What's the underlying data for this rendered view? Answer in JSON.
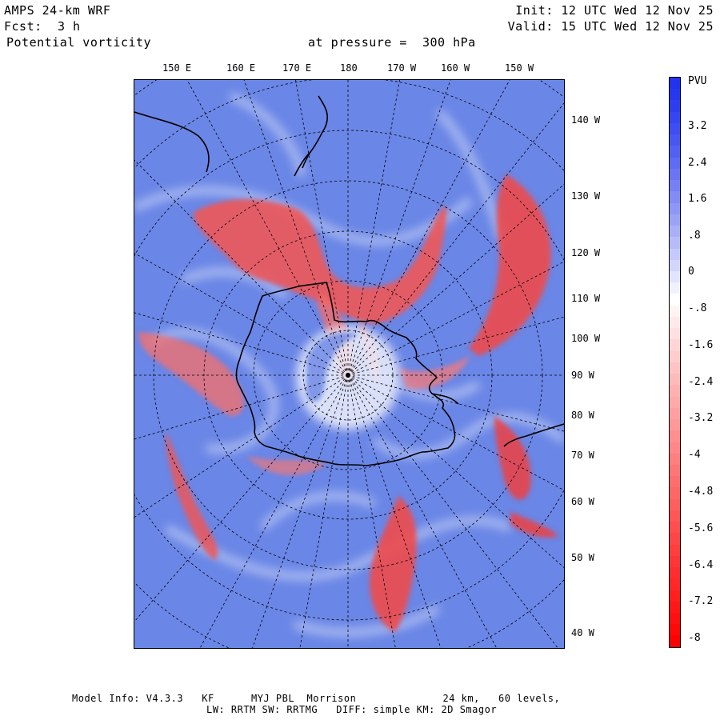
{
  "header": {
    "model": "AMPS 24-km WRF",
    "fcst_label": "Fcst:",
    "fcst_value": "3 h",
    "field": "Potential vorticity",
    "level": "at pressure =  300 hPa",
    "init": "Init: 12 UTC Wed 12 Nov 25",
    "valid": "Valid: 15 UTC Wed 12 Nov 25"
  },
  "map": {
    "top_lon_labels": [
      "150 E",
      "160 E",
      "170 E",
      "180",
      "170 W",
      "160 W",
      "150 W"
    ],
    "right_lon_labels": [
      "140 W",
      "130 W",
      "120 W",
      "110 W",
      "100 W",
      "90 W",
      "80 W",
      "70 W",
      "60 W",
      "50 W",
      "40 W"
    ]
  },
  "colorbar": {
    "unit": "PVU",
    "ticks": [
      "3.2",
      "2.4",
      "1.6",
      ".8",
      "0",
      "-.8",
      "-1.6",
      "-2.4",
      "-3.2",
      "-4",
      "-4.8",
      "-5.6",
      "-6.4",
      "-7.2",
      "-8"
    ],
    "colors": {
      "positive": "#2233ee",
      "neutral": "#ffffff",
      "negative": "#ff0000"
    }
  },
  "footer": {
    "line1": "Model Info: V4.3.3   KF      MYJ PBL  Morrison              24 km,   60 levels,",
    "line2": "LW: RRTM SW: RRTMG   DIFF: simple KM: 2D Smagor"
  }
}
